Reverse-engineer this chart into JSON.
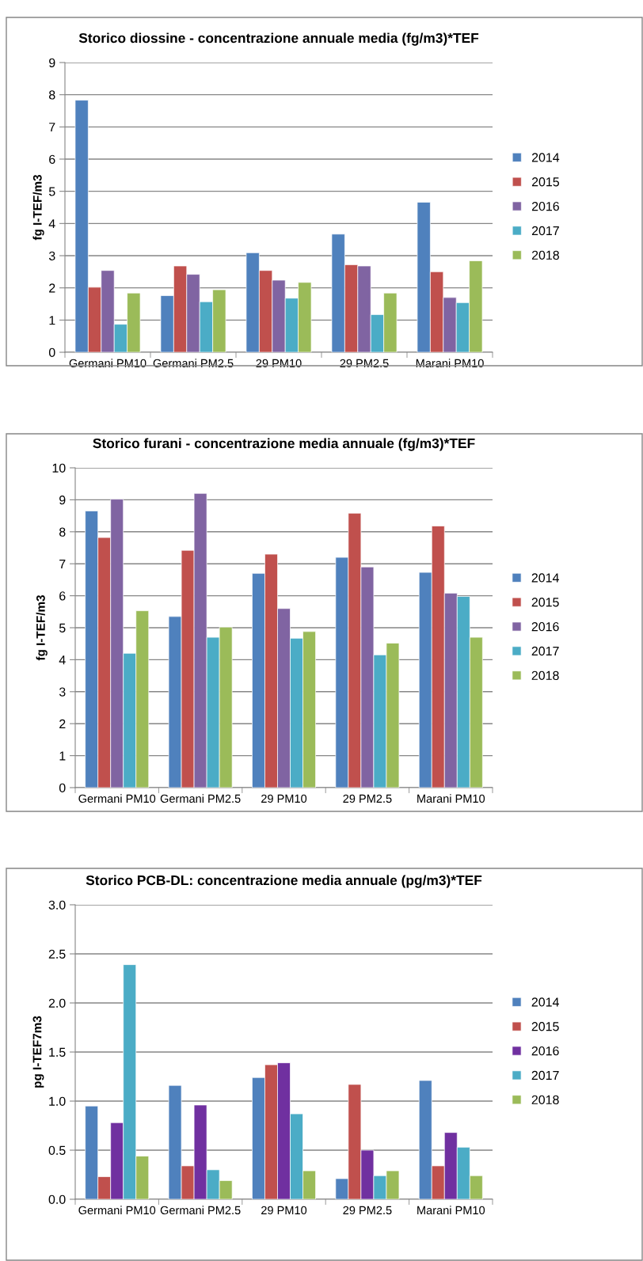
{
  "chart_data": [
    {
      "type": "bar",
      "title": "Storico diossine - concentrazione annuale media (fg/m3)*TEF",
      "ylabel": "fg I-TEF/m3",
      "categories": [
        "Germani PM10",
        "Germani PM2.5",
        "29 PM10",
        "29 PM2.5",
        "Marani PM10"
      ],
      "ylim": [
        0,
        9
      ],
      "yticks": [
        0,
        1,
        2,
        3,
        4,
        5,
        6,
        7,
        8,
        9
      ],
      "grid": "y",
      "legend": "right",
      "series": [
        {
          "name": "2014",
          "color": "#4f81bd",
          "values": [
            7.83,
            1.76,
            3.09,
            3.67,
            4.66
          ]
        },
        {
          "name": "2015",
          "color": "#c0504d",
          "values": [
            2.02,
            2.68,
            2.54,
            2.72,
            2.5
          ]
        },
        {
          "name": "2016",
          "color": "#8064a2",
          "values": [
            2.54,
            2.42,
            2.24,
            2.68,
            1.7
          ]
        },
        {
          "name": "2017",
          "color": "#4bacc6",
          "values": [
            0.87,
            1.57,
            1.68,
            1.17,
            1.54
          ]
        },
        {
          "name": "2018",
          "color": "#9bbb59",
          "values": [
            1.84,
            1.94,
            2.17,
            1.84,
            2.84
          ]
        }
      ]
    },
    {
      "type": "bar",
      "title": "Storico furani - concentrazione media annuale (fg/m3)*TEF",
      "ylabel": "fg I-TEF/m3",
      "categories": [
        "Germani PM10",
        "Germani PM2.5",
        "29 PM10",
        "29 PM2.5",
        "Marani PM10"
      ],
      "ylim": [
        0,
        10
      ],
      "yticks": [
        0,
        1,
        2,
        3,
        4,
        5,
        6,
        7,
        8,
        9,
        10
      ],
      "grid": "y",
      "legend": "right",
      "series": [
        {
          "name": "2014",
          "color": "#4f81bd",
          "values": [
            8.65,
            5.35,
            6.7,
            7.2,
            6.73
          ]
        },
        {
          "name": "2015",
          "color": "#c0504d",
          "values": [
            7.82,
            7.42,
            7.3,
            8.58,
            8.18
          ]
        },
        {
          "name": "2016",
          "color": "#8064a2",
          "values": [
            9.02,
            9.2,
            5.6,
            6.9,
            6.08
          ]
        },
        {
          "name": "2017",
          "color": "#4bacc6",
          "values": [
            4.2,
            4.7,
            4.67,
            4.15,
            5.98
          ]
        },
        {
          "name": "2018",
          "color": "#9bbb59",
          "values": [
            5.53,
            5.02,
            4.88,
            4.52,
            4.7
          ]
        }
      ]
    },
    {
      "type": "bar",
      "title": "Storico PCB-DL: concentrazione media annuale (pg/m3)*TEF",
      "ylabel": "pg I-TEF7m3",
      "categories": [
        "Germani PM10",
        "Germani PM2.5",
        "29 PM10",
        "29 PM2.5",
        "Marani PM10"
      ],
      "ylim": [
        0,
        3
      ],
      "yticks": [
        {
          "value": 0,
          "label": "0.0"
        },
        0.5,
        {
          "value": 1,
          "label": "1.0"
        },
        1.5,
        {
          "value": 2,
          "label": "2.0"
        },
        2.5,
        {
          "value": 3,
          "label": "3.0"
        }
      ],
      "grid": "y",
      "legend": "right",
      "series": [
        {
          "name": "2014",
          "color": "#4f81bd",
          "values": [
            0.95,
            1.16,
            1.24,
            0.21,
            1.21
          ]
        },
        {
          "name": "2015",
          "color": "#c0504d",
          "values": [
            0.23,
            0.34,
            1.37,
            1.17,
            0.34
          ]
        },
        {
          "name": "2016",
          "color": "#7030a0",
          "values": [
            0.78,
            0.96,
            1.39,
            0.5,
            0.68
          ]
        },
        {
          "name": "2017",
          "color": "#4bacc6",
          "values": [
            2.39,
            0.3,
            0.87,
            0.24,
            0.53
          ]
        },
        {
          "name": "2018",
          "color": "#9bbb59",
          "values": [
            0.44,
            0.19,
            0.29,
            0.29,
            0.24
          ]
        }
      ]
    }
  ]
}
